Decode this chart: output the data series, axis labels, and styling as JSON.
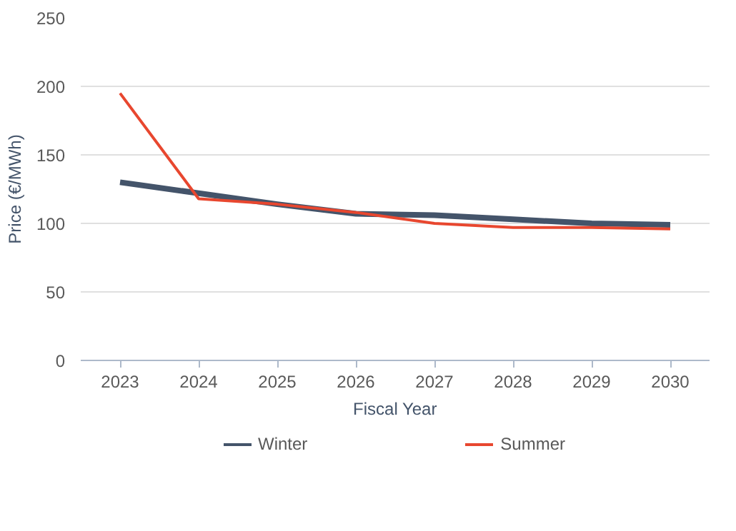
{
  "chart_data": {
    "type": "line",
    "xlabel": "Fiscal Year",
    "ylabel": "Price (€/MWh)",
    "categories": [
      "2023",
      "2024",
      "2025",
      "2026",
      "2027",
      "2028",
      "2029",
      "2030"
    ],
    "series": [
      {
        "name": "Winter",
        "color": "#44546a",
        "values": [
          130,
          122,
          114,
          107,
          106,
          103,
          100,
          99
        ]
      },
      {
        "name": "Summer",
        "color": "#e8472f",
        "values": [
          195,
          118,
          114,
          108,
          100,
          97,
          97,
          96
        ]
      }
    ],
    "ylim": [
      0,
      250
    ],
    "yticks": [
      0,
      50,
      100,
      150,
      200,
      250
    ],
    "grid": "y",
    "legend": "bottom",
    "marker": "none",
    "line_style": "solid"
  }
}
